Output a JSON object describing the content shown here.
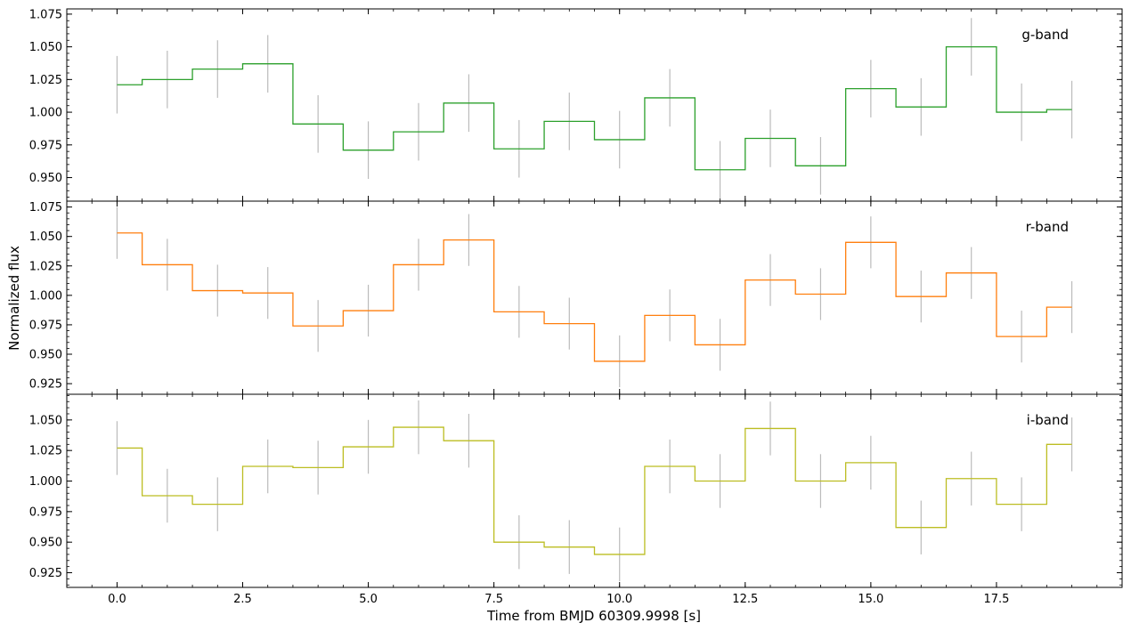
{
  "chart_data": {
    "type": "line",
    "xlabel": "Time from BMJD 60309.9998 [s]",
    "ylabel": "Normalized flux",
    "xlim": [
      -1.0,
      20.0
    ],
    "x_ticks": [
      0.0,
      2.5,
      5.0,
      7.5,
      10.0,
      12.5,
      15.0,
      17.5
    ],
    "x_tick_labels": [
      "0.0",
      "2.5",
      "5.0",
      "7.5",
      "10.0",
      "12.5",
      "15.0",
      "17.5"
    ],
    "x": [
      0,
      1,
      2,
      3,
      4,
      5,
      6,
      7,
      8,
      9,
      10,
      11,
      12,
      13,
      14,
      15,
      16,
      17,
      18,
      19
    ],
    "error": 0.022,
    "panels": [
      {
        "label": "g-band",
        "color": "#2ca02c",
        "ylim": [
          0.932,
          1.079
        ],
        "y_ticks": [
          0.95,
          0.975,
          1.0,
          1.025,
          1.05,
          1.075
        ],
        "y_tick_labels": [
          "0.950",
          "0.975",
          "1.000",
          "1.025",
          "1.050",
          "1.075"
        ],
        "values": [
          1.021,
          1.025,
          1.033,
          1.037,
          0.991,
          0.971,
          0.985,
          1.007,
          0.972,
          0.993,
          0.979,
          1.011,
          0.956,
          0.98,
          0.959,
          1.018,
          1.004,
          1.05,
          1.0,
          1.002
        ]
      },
      {
        "label": "r-band",
        "color": "#ff7f0e",
        "ylim": [
          0.916,
          1.08
        ],
        "y_ticks": [
          0.925,
          0.95,
          0.975,
          1.0,
          1.025,
          1.05,
          1.075
        ],
        "y_tick_labels": [
          "0.925",
          "0.950",
          "0.975",
          "1.000",
          "1.025",
          "1.050",
          "1.075"
        ],
        "values": [
          1.053,
          1.026,
          1.004,
          1.002,
          0.974,
          0.987,
          1.026,
          1.047,
          0.986,
          0.976,
          0.944,
          0.983,
          0.958,
          1.013,
          1.001,
          1.045,
          0.999,
          1.019,
          0.965,
          0.99
        ]
      },
      {
        "label": "i-band",
        "color": "#bcbd22",
        "ylim": [
          0.913,
          1.071
        ],
        "y_ticks": [
          0.925,
          0.95,
          0.975,
          1.0,
          1.025,
          1.05
        ],
        "y_tick_labels": [
          "0.925",
          "0.950",
          "0.975",
          "1.000",
          "1.025",
          "1.050"
        ],
        "values": [
          1.027,
          0.988,
          0.981,
          1.012,
          1.011,
          1.028,
          1.044,
          1.033,
          0.95,
          0.946,
          0.94,
          1.012,
          1.0,
          1.043,
          1.0,
          1.015,
          0.962,
          1.002,
          0.981,
          1.03
        ]
      }
    ],
    "errorbar_color": "#bbbbbb",
    "grid": false,
    "legend": "none; band label at top-right inside each panel"
  }
}
